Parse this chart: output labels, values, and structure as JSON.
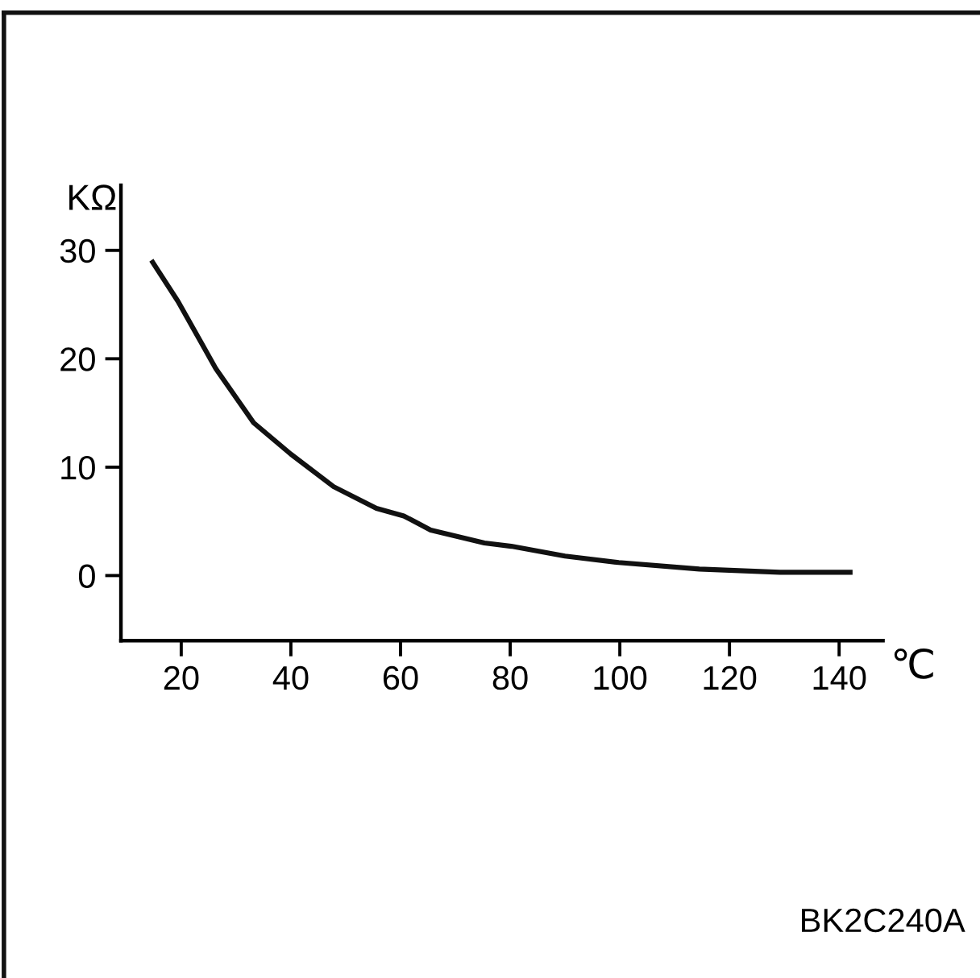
{
  "chart_data": {
    "type": "line",
    "xlabel": "℃",
    "ylabel": "KΩ",
    "x": [
      14.8,
      19.4,
      26.3,
      33.2,
      40,
      47.8,
      55.6,
      60.6,
      65.5,
      75.3,
      80.2,
      90,
      99.8,
      114.5,
      129.2,
      142
    ],
    "series": [
      {
        "color": "#111111",
        "values": [
          28.9,
          25.3,
          19.1,
          14.1,
          11.2,
          8.2,
          6.2,
          5.5,
          4.2,
          3.0,
          2.7,
          1.8,
          1.2,
          0.6,
          0.3,
          0.3
        ]
      }
    ],
    "xlim": [
      9,
      148
    ],
    "ylim": [
      -6,
      36
    ],
    "xticks": [
      20,
      40,
      60,
      80,
      100,
      120,
      140
    ],
    "yticks": [
      0,
      10,
      20,
      30
    ],
    "grid": false,
    "legend": false,
    "marker": "none",
    "line_style": "solid",
    "annotations": [
      "BK2C240A"
    ]
  }
}
